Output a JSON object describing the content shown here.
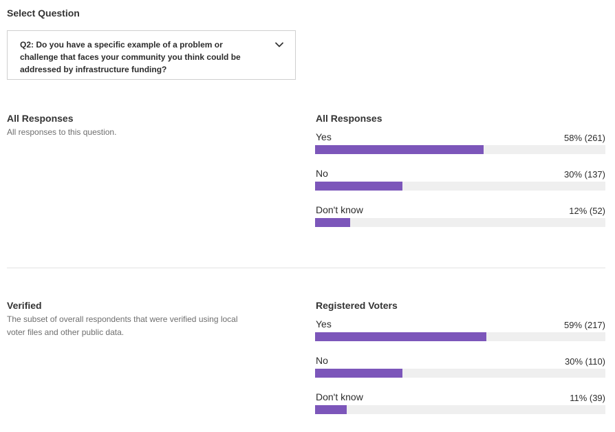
{
  "colors": {
    "bar_fill": "#7c56ba",
    "bar_track": "#efefef"
  },
  "select_question": {
    "label": "Select Question",
    "selected_value": "Q2: Do you have a specific example of a problem or challenge that faces your community you think could be addressed by infrastructure funding?",
    "icon": "chevron-down-icon"
  },
  "all_responses_section": {
    "title": "All Responses",
    "description": "All responses to this question.",
    "chart": {
      "title": "All Responses",
      "rows": [
        {
          "label": "Yes",
          "value_text": "58% (261)",
          "fraction": 0.58
        },
        {
          "label": "No",
          "value_text": "30% (137)",
          "fraction": 0.3
        },
        {
          "label": "Don't know",
          "value_text": "12% (52)",
          "fraction": 0.12
        }
      ]
    }
  },
  "verified_section": {
    "title": "Verified",
    "description": "The subset of overall respondents that were verified using local voter files and other public data.",
    "chart": {
      "title": "Registered Voters",
      "rows": [
        {
          "label": "Yes",
          "value_text": "59% (217)",
          "fraction": 0.59
        },
        {
          "label": "No",
          "value_text": "30% (110)",
          "fraction": 0.3
        },
        {
          "label": "Don't know",
          "value_text": "11% (39)",
          "fraction": 0.11
        }
      ]
    }
  }
}
